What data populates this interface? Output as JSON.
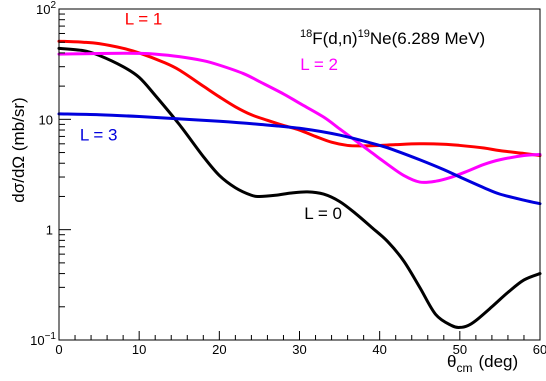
{
  "chart_data": {
    "type": "line",
    "title": "",
    "annotation": {
      "reaction": {
        "mass_a": "18",
        "nucleus_a": "F(d,n)",
        "mass_b": "19",
        "nucleus_b": "Ne(6.289 MeV)"
      }
    },
    "xlabel": {
      "symbol": "θ",
      "subscript": "cm",
      "unit": "(deg)"
    },
    "ylabel": "dσ/dΩ  (mb/sr)",
    "xlim": [
      0,
      60
    ],
    "ylim": [
      0.1,
      100
    ],
    "yscale": "log",
    "x_ticks": [
      0,
      10,
      20,
      30,
      40,
      50,
      60
    ],
    "x_tick_labels": [
      "0",
      "10",
      "20",
      "30",
      "40",
      "50",
      "60"
    ],
    "y_ticks": [
      {
        "value": 0.1,
        "base": "10",
        "exp": "−1"
      },
      {
        "value": 1,
        "base": "1",
        "exp": ""
      },
      {
        "value": 10,
        "base": "10",
        "exp": ""
      },
      {
        "value": 100,
        "base": "10",
        "exp": "2"
      }
    ],
    "grid": false,
    "series": [
      {
        "name": "L = 0",
        "color": "#000000",
        "x": [
          0,
          3,
          5,
          8,
          10,
          12,
          15,
          18,
          20,
          22,
          24,
          25,
          27,
          29,
          31,
          33,
          35,
          37,
          39,
          41,
          43,
          45,
          47,
          49,
          50,
          51,
          52,
          54,
          56,
          58,
          60
        ],
        "y": [
          44,
          42,
          38,
          30,
          24,
          16.5,
          9,
          4.6,
          3.1,
          2.4,
          2.05,
          2.0,
          2.05,
          2.15,
          2.2,
          2.1,
          1.8,
          1.4,
          1.05,
          0.78,
          0.52,
          0.3,
          0.17,
          0.135,
          0.13,
          0.135,
          0.15,
          0.2,
          0.27,
          0.35,
          0.4
        ]
      },
      {
        "name": "L = 1",
        "color": "#ff0000",
        "x": [
          0,
          3,
          5,
          8,
          10,
          13,
          15,
          18,
          20,
          22,
          24,
          26,
          28,
          30,
          32,
          34,
          36,
          38,
          40,
          42,
          45,
          48,
          50,
          53,
          55,
          58,
          60
        ],
        "y": [
          51,
          50,
          48.5,
          44,
          40,
          33,
          28,
          20,
          16,
          13,
          11,
          9.8,
          8.8,
          8.0,
          7.0,
          6.2,
          5.8,
          5.75,
          5.8,
          5.9,
          6.0,
          5.95,
          5.8,
          5.5,
          5.2,
          4.9,
          4.7
        ]
      },
      {
        "name": "L = 2",
        "color": "#ff00ff",
        "x": [
          0,
          3,
          5,
          8,
          10,
          12,
          15,
          18,
          20,
          23,
          25,
          28,
          30,
          33,
          35,
          37,
          39,
          41,
          43,
          45,
          47,
          49,
          51,
          53,
          55,
          58,
          60
        ],
        "y": [
          39,
          39.3,
          39.5,
          39.7,
          39.6,
          39,
          37,
          34,
          31,
          26,
          22,
          17,
          14,
          10.5,
          8.2,
          6.4,
          5.0,
          3.9,
          3.1,
          2.7,
          2.75,
          3.0,
          3.4,
          3.9,
          4.3,
          4.7,
          4.8
        ]
      },
      {
        "name": "L = 3",
        "color": "#0000dd",
        "x": [
          0,
          5,
          10,
          15,
          20,
          25,
          30,
          35,
          40,
          42,
          45,
          48,
          50,
          53,
          55,
          58,
          60
        ],
        "y": [
          11.2,
          11.0,
          10.6,
          10.1,
          9.6,
          9.0,
          8.3,
          7.2,
          5.8,
          5.2,
          4.3,
          3.5,
          3.0,
          2.4,
          2.1,
          1.85,
          1.72
        ]
      }
    ],
    "series_labels": [
      {
        "text": "L = 1",
        "color": "#ff0000",
        "x": 8.2,
        "y": 72
      },
      {
        "text": "L = 2",
        "color": "#ff00ff",
        "x": 30.1,
        "y": 28
      },
      {
        "text": "L = 3",
        "color": "#0000dd",
        "x": 2.6,
        "y": 6.4
      },
      {
        "text": "L = 0",
        "color": "#000000",
        "x": 30.6,
        "y": 1.25
      }
    ]
  }
}
